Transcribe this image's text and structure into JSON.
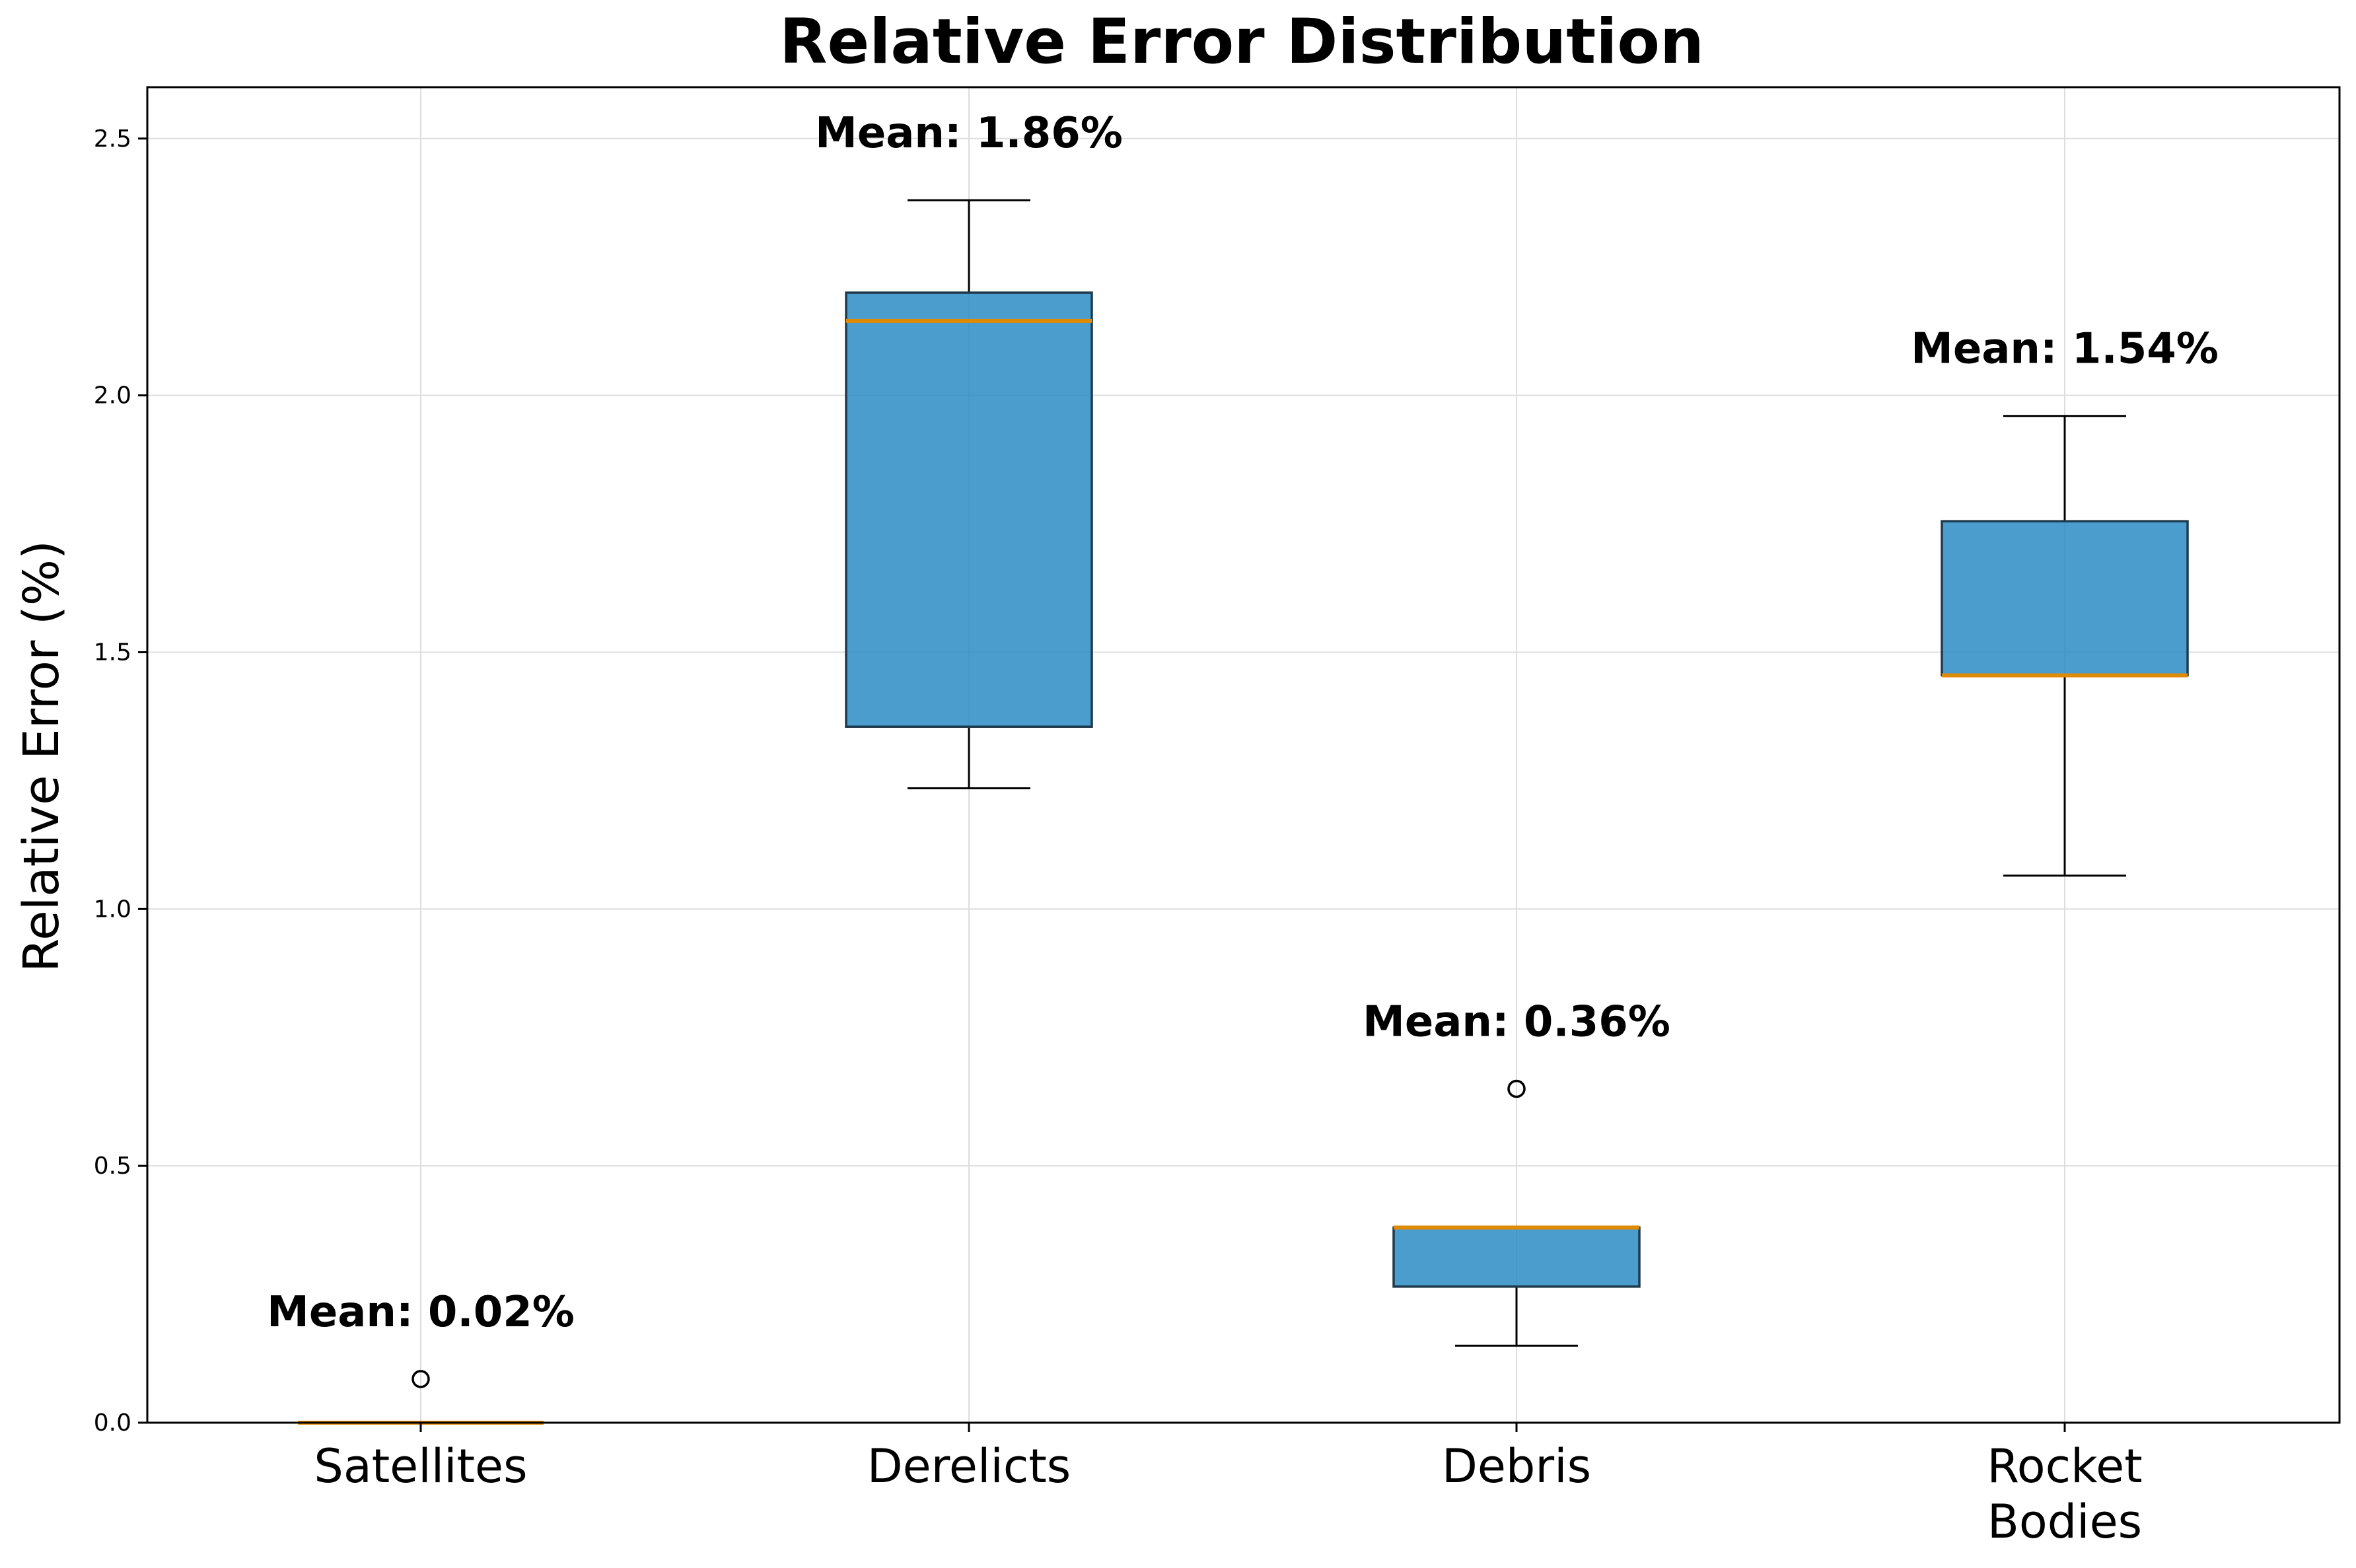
{
  "chart_data": {
    "type": "box",
    "title": "Relative Error Distribution",
    "xlabel": "",
    "ylabel": "Relative Error (%)",
    "ylim": [
      0,
      2.6
    ],
    "yticks": [
      "0.0",
      "0.5",
      "1.0",
      "1.5",
      "2.0",
      "2.5"
    ],
    "grid": true,
    "categories": [
      "Satellites",
      "Derelicts",
      "Debris",
      "Rocket\nBodies"
    ],
    "boxes": [
      {
        "category": "Satellites",
        "whisker_low": 0.0,
        "q1": 0.0,
        "median": 0.0,
        "q3": 0.0,
        "whisker_high": 0.0,
        "outliers": [
          0.085
        ],
        "mean": 0.02,
        "mean_label": "Mean: 0.02%"
      },
      {
        "category": "Derelicts",
        "whisker_low": 1.235,
        "q1": 1.355,
        "median": 2.145,
        "q3": 2.2,
        "whisker_high": 2.38,
        "outliers": [],
        "mean": 1.86,
        "mean_label": "Mean: 1.86%"
      },
      {
        "category": "Debris",
        "whisker_low": 0.15,
        "q1": 0.265,
        "median": 0.38,
        "q3": 0.38,
        "whisker_high": 0.38,
        "outliers": [
          0.65
        ],
        "mean": 0.36,
        "mean_label": "Mean: 0.36%"
      },
      {
        "category": "Rocket Bodies",
        "whisker_low": 1.065,
        "q1": 1.455,
        "median": 1.455,
        "q3": 1.755,
        "whisker_high": 1.96,
        "outliers": [],
        "mean": 1.54,
        "mean_label": "Mean: 1.54%"
      }
    ],
    "colors": {
      "box_fill": "#2b8cc4",
      "box_edge": "#1f3a4d",
      "median": "#e08a00",
      "grid": "#dddddd",
      "axis": "#000000"
    }
  }
}
